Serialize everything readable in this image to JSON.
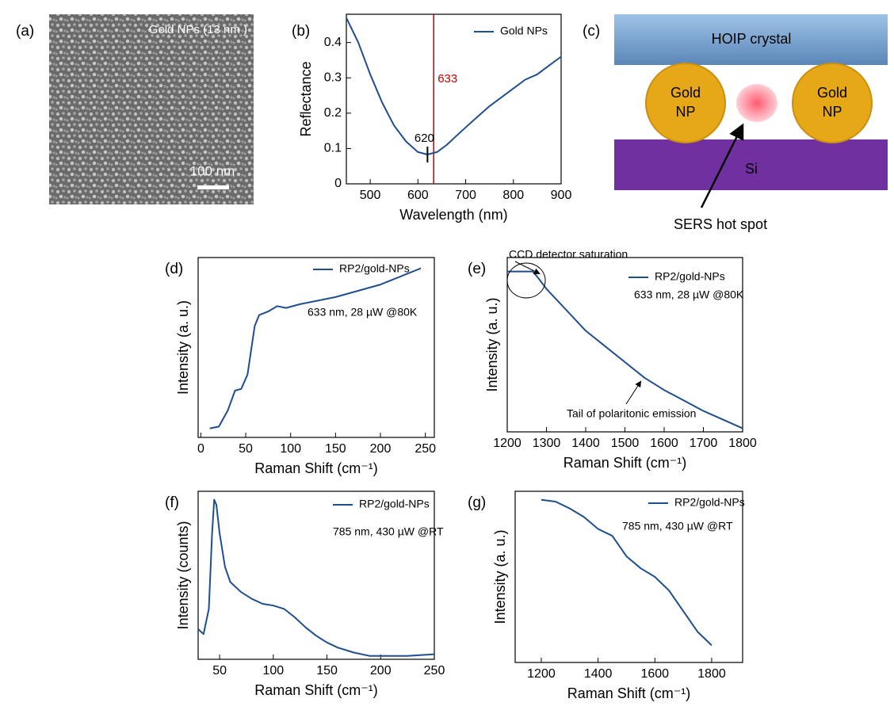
{
  "panel_labels": [
    "(a)",
    "(b)",
    "(c)",
    "(d)",
    "(e)",
    "(f)",
    "(g)"
  ],
  "image_panel": {
    "caption": "Gold NPs (13 nm )",
    "scale_bar": "100 nm"
  },
  "diagram": {
    "top_layer": "HOIP crystal",
    "particle_left": [
      "Gold",
      "NP"
    ],
    "particle_right": [
      "Gold",
      "NP"
    ],
    "substrate": "Si",
    "callout": "SERS hot spot"
  },
  "chart_data": [
    {
      "type": "line",
      "x_label": "Wavelength (nm)",
      "y_label": "Reflectance",
      "x": [
        450,
        475,
        500,
        525,
        550,
        575,
        600,
        620,
        640,
        660,
        680,
        700,
        725,
        750,
        775,
        800,
        825,
        850,
        875,
        900
      ],
      "series": [
        {
          "name": "Gold NPs",
          "color": "#1f4e8c",
          "values": [
            0.47,
            0.4,
            0.31,
            0.23,
            0.165,
            0.12,
            0.09,
            0.083,
            0.09,
            0.11,
            0.135,
            0.16,
            0.19,
            0.22,
            0.245,
            0.27,
            0.295,
            0.31,
            0.335,
            0.36
          ]
        }
      ],
      "xlim": [
        450,
        900
      ],
      "ylim": [
        0,
        0.48
      ],
      "xticks": [
        500,
        600,
        700,
        800,
        900
      ],
      "yticks": [
        0,
        0.1,
        0.2,
        0.3,
        0.4
      ],
      "vline": {
        "x": 633,
        "color": "#c00000"
      },
      "point": {
        "x": 620,
        "y": 0.083
      }
    },
    {
      "type": "line",
      "x_label": "Raman Shift (cm⁻¹)",
      "y_label": "Intensity (a. u.)",
      "x": [
        10,
        20,
        30,
        38,
        45,
        52,
        60,
        65,
        75,
        85,
        95,
        110,
        150,
        200,
        245
      ],
      "series": [
        {
          "name": "RP2/gold-NPs",
          "color": "#1f4e8c",
          "values": [
            0.05,
            0.06,
            0.15,
            0.26,
            0.27,
            0.35,
            0.62,
            0.68,
            0.7,
            0.73,
            0.72,
            0.74,
            0.78,
            0.85,
            0.94
          ]
        }
      ],
      "xlim": [
        -3,
        260
      ],
      "ylim": [
        0,
        1
      ],
      "xticks": [
        0,
        50,
        100,
        150,
        200,
        250
      ],
      "annotations": [
        "633 nm, 28 µW @80K"
      ]
    },
    {
      "type": "line",
      "x_label": "Raman Shift (cm⁻¹)",
      "y_label": "Intensity (a. u.)",
      "x": [
        1200,
        1265,
        1280,
        1300,
        1350,
        1400,
        1450,
        1500,
        1550,
        1600,
        1650,
        1700,
        1750,
        1800
      ],
      "series": [
        {
          "name": "RP2/gold-NPs",
          "color": "#1f4e8c",
          "values": [
            0.92,
            0.92,
            0.88,
            0.82,
            0.7,
            0.58,
            0.49,
            0.4,
            0.31,
            0.24,
            0.18,
            0.12,
            0.07,
            0.02
          ]
        }
      ],
      "xlim": [
        1200,
        1800
      ],
      "ylim": [
        0,
        1
      ],
      "xticks": [
        1200,
        1300,
        1400,
        1500,
        1600,
        1700,
        1800
      ],
      "annotations": [
        "633 nm, 28 µW @80K",
        "CCD detector saturation",
        "Tail of polaritonic emission"
      ]
    },
    {
      "type": "line",
      "x_label": "Raman Shift (cm⁻¹)",
      "y_label": "Intensity (counts)",
      "x": [
        30,
        35,
        40,
        43,
        45,
        47,
        50,
        55,
        60,
        70,
        80,
        90,
        100,
        110,
        120,
        130,
        140,
        150,
        160,
        175,
        190,
        200,
        225,
        250
      ],
      "series": [
        {
          "name": "RP2/gold-NPs",
          "color": "#1f4e8c",
          "values": [
            0.18,
            0.15,
            0.3,
            0.75,
            0.95,
            0.92,
            0.75,
            0.55,
            0.46,
            0.4,
            0.36,
            0.33,
            0.32,
            0.3,
            0.25,
            0.19,
            0.14,
            0.1,
            0.07,
            0.04,
            0.02,
            0.02,
            0.02,
            0.03
          ]
        }
      ],
      "xlim": [
        30,
        250
      ],
      "ylim": [
        0,
        1
      ],
      "xticks": [
        50,
        100,
        150,
        200,
        250
      ],
      "annotations": [
        "785 nm, 430 µW @RT"
      ]
    },
    {
      "type": "line",
      "x_label": "Raman Shift (cm⁻¹)",
      "y_label": "Intensity (a. u.)",
      "x": [
        1200,
        1250,
        1300,
        1350,
        1400,
        1450,
        1500,
        1550,
        1600,
        1650,
        1700,
        1750,
        1800
      ],
      "series": [
        {
          "name": "RP2/gold-NPs",
          "color": "#1f4e8c",
          "values": [
            0.95,
            0.94,
            0.9,
            0.85,
            0.78,
            0.74,
            0.62,
            0.55,
            0.5,
            0.42,
            0.3,
            0.18,
            0.1
          ]
        }
      ],
      "xlim": [
        1108,
        1909
      ],
      "ylim": [
        0,
        1
      ],
      "xticks": [
        1200,
        1400,
        1600,
        1800
      ],
      "annotations": [
        "785 nm, 430 µW @RT"
      ]
    }
  ]
}
